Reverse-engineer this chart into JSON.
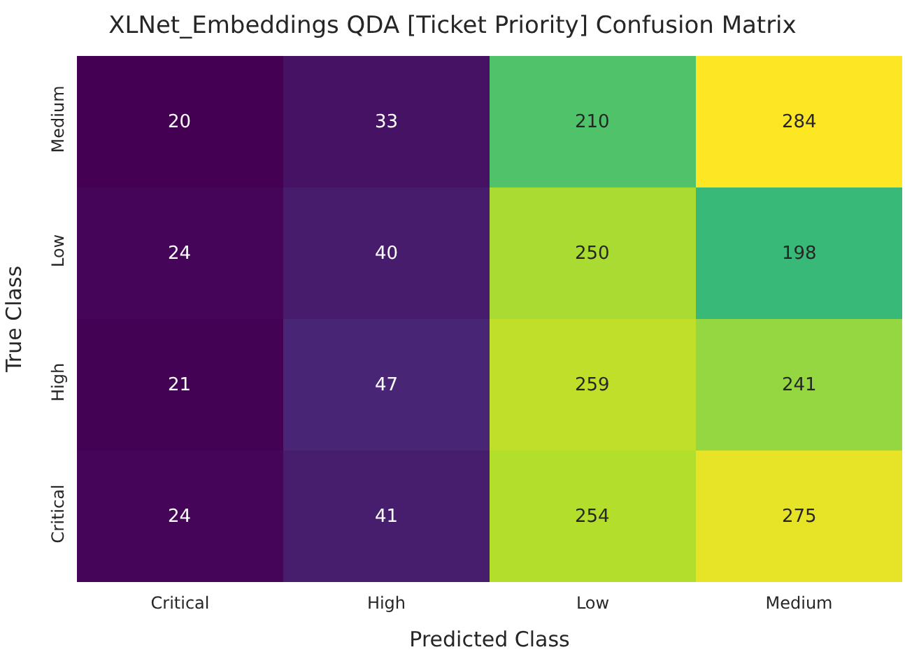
{
  "chart_data": {
    "type": "heatmap",
    "title": "XLNet_Embeddings QDA [Ticket Priority] Confusion Matrix",
    "xlabel": "Predicted Class",
    "ylabel": "True Class",
    "categories": [
      "Critical",
      "High",
      "Low",
      "Medium"
    ],
    "y_categories": [
      "Medium",
      "Low",
      "High",
      "Critical"
    ],
    "cells": [
      [
        20,
        33,
        210,
        284
      ],
      [
        24,
        40,
        250,
        198
      ],
      [
        21,
        47,
        259,
        241
      ],
      [
        24,
        41,
        254,
        275
      ]
    ],
    "data_labels": true
  }
}
